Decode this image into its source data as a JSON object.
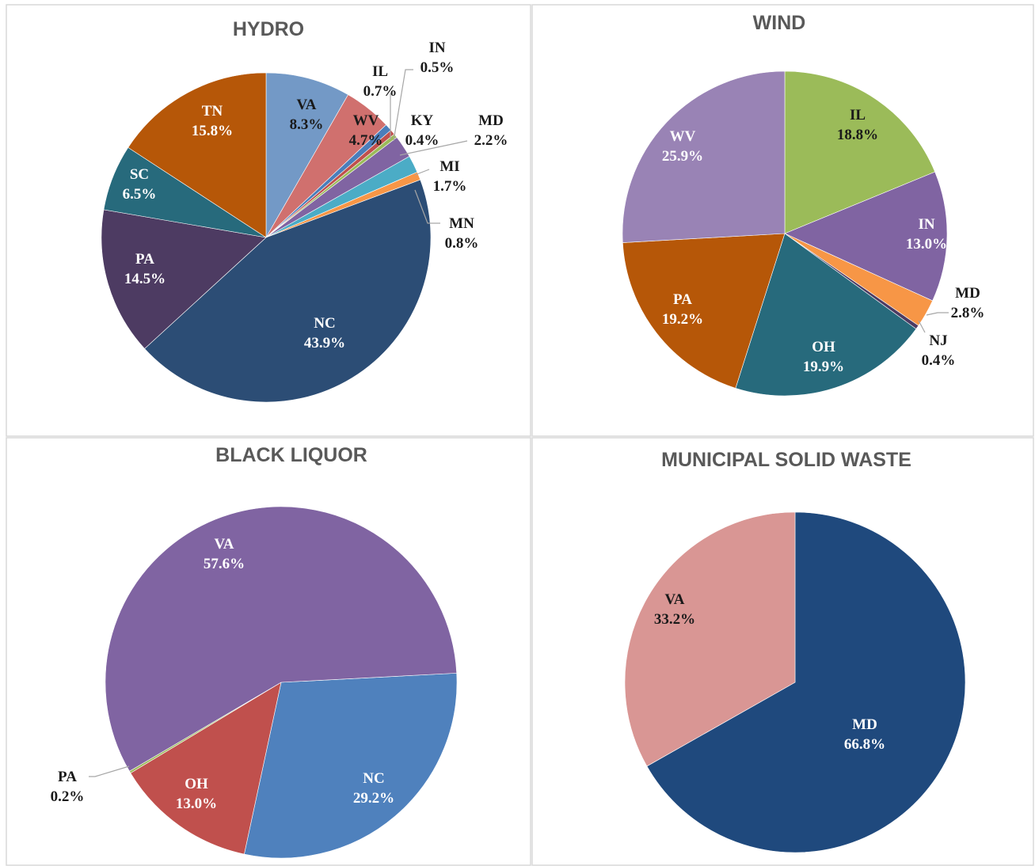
{
  "chart_data": [
    {
      "type": "pie",
      "title": "HYDRO",
      "categories": [
        "VA",
        "WV",
        "IL",
        "IN",
        "KY",
        "MD",
        "MI",
        "MN",
        "NC",
        "PA",
        "SC",
        "TN"
      ],
      "values": [
        8.3,
        4.7,
        0.7,
        0.5,
        0.4,
        2.2,
        1.7,
        0.8,
        43.9,
        14.5,
        6.5,
        15.8
      ],
      "value_labels": [
        "8.3%",
        "4.7%",
        "0.7%",
        "0.5%",
        "0.4%",
        "2.2%",
        "1.7%",
        "0.8%",
        "43.9%",
        "14.5%",
        "6.5%",
        "15.8%"
      ],
      "colors": [
        "#7399c6",
        "#d0706e",
        "#4a7ebb",
        "#c0504d",
        "#9bbb59",
        "#8064a2",
        "#4bacc6",
        "#f79646",
        "#2c4d75",
        "#4d3b62",
        "#276a7c",
        "#b65708"
      ]
    },
    {
      "type": "pie",
      "title": "WIND",
      "categories": [
        "IL",
        "IN",
        "MD",
        "NJ",
        "OH",
        "PA",
        "WV"
      ],
      "values": [
        18.8,
        13.0,
        2.8,
        0.4,
        19.9,
        19.2,
        25.9
      ],
      "value_labels": [
        "18.8%",
        "13.0%",
        "2.8%",
        "0.4%",
        "19.9%",
        "19.2%",
        "25.9%"
      ],
      "colors": [
        "#9bbb59",
        "#8064a2",
        "#f79646",
        "#4d3b62",
        "#276a7c",
        "#b65708",
        "#9983b5"
      ]
    },
    {
      "type": "pie",
      "title": "BLACK LIQUOR",
      "categories": [
        "NC",
        "OH",
        "PA",
        "VA"
      ],
      "values": [
        29.2,
        13.0,
        0.2,
        57.6
      ],
      "value_labels": [
        "29.2%",
        "13.0%",
        "0.2%",
        "57.6%"
      ],
      "colors": [
        "#4f81bd",
        "#c0504d",
        "#9bbb59",
        "#8064a2"
      ]
    },
    {
      "type": "pie",
      "title": "MUNICIPAL SOLID WASTE",
      "categories": [
        "MD",
        "VA"
      ],
      "values": [
        66.8,
        33.2
      ],
      "value_labels": [
        "66.8%",
        "33.2%"
      ],
      "colors": [
        "#1f497d",
        "#d99694"
      ]
    }
  ]
}
